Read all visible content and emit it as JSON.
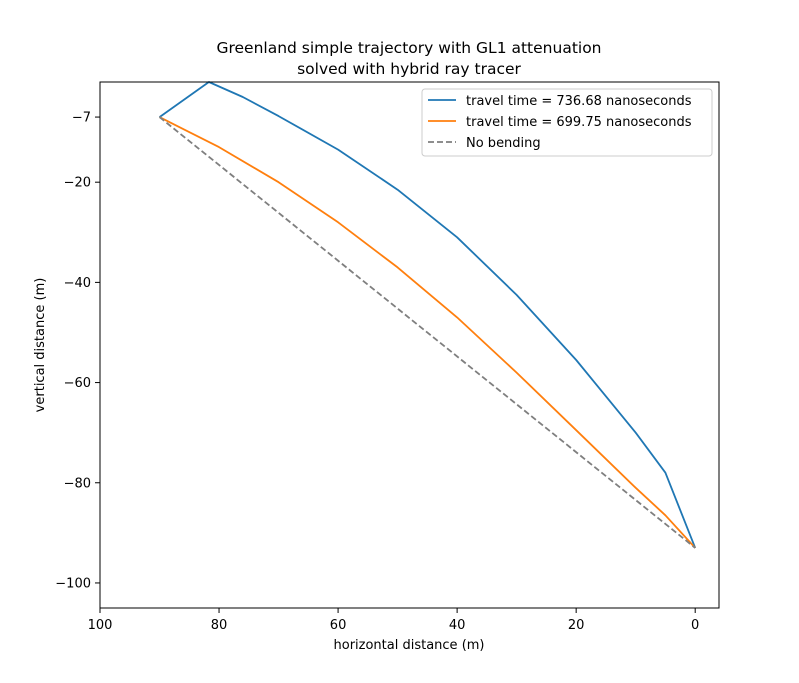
{
  "chart_data": {
    "type": "line",
    "title": [
      "Greenland simple trajectory with GL1 attenuation",
      "solved with hybrid ray tracer"
    ],
    "xlabel": "horizontal distance (m)",
    "ylabel": "vertical distance (m)",
    "xlim": [
      100,
      -4
    ],
    "ylim": [
      -105,
      0
    ],
    "x_inverted": true,
    "xticks": [
      100,
      80,
      60,
      40,
      20,
      0
    ],
    "yticks": [
      -7,
      -20,
      -40,
      -60,
      -80,
      -100
    ],
    "grid": false,
    "legend_position": "top-right",
    "series": [
      {
        "name": "travel time = 736.68 nanoseconds",
        "color": "#1f77b4",
        "style": "solid",
        "points": [
          [
            90,
            -7
          ],
          [
            81.7,
            0
          ],
          [
            76,
            -3
          ],
          [
            70,
            -6.8
          ],
          [
            60,
            -13.5
          ],
          [
            50,
            -21.5
          ],
          [
            40,
            -31
          ],
          [
            30,
            -42.5
          ],
          [
            20,
            -55.5
          ],
          [
            10,
            -70
          ],
          [
            5,
            -78
          ],
          [
            0,
            -93
          ]
        ]
      },
      {
        "name": "travel time = 699.75 nanoseconds",
        "color": "#ff7f0e",
        "style": "solid",
        "points": [
          [
            90,
            -7
          ],
          [
            80,
            -13
          ],
          [
            70,
            -20
          ],
          [
            60,
            -28
          ],
          [
            50,
            -37
          ],
          [
            40,
            -47
          ],
          [
            30,
            -58
          ],
          [
            20,
            -69.5
          ],
          [
            10,
            -81
          ],
          [
            5,
            -86.5
          ],
          [
            0,
            -93
          ]
        ]
      },
      {
        "name": "No bending",
        "color": "#7f7f7f",
        "style": "dashed",
        "points": [
          [
            90,
            -7
          ],
          [
            0,
            -93
          ]
        ]
      }
    ]
  }
}
